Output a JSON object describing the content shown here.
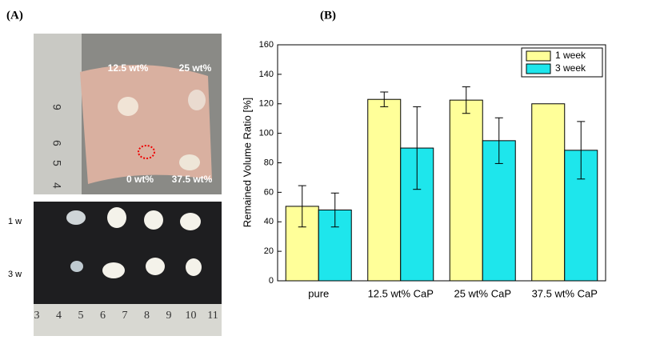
{
  "panel_a": {
    "label": "(A)",
    "top_photo_labels": [
      "12.5 wt%",
      "25 wt%",
      "0 wt%",
      "37.5 wt%"
    ],
    "row_labels": [
      "1 w",
      "3 w"
    ],
    "ruler_left": [
      "9",
      "6",
      "5",
      "4"
    ],
    "ruler_bottom": [
      "3",
      "4",
      "5",
      "6",
      "7",
      "8",
      "9",
      "10",
      "11"
    ]
  },
  "chart_data": {
    "type": "bar",
    "panel_label": "(B)",
    "y_label": "Remained Volume Ratio [%]",
    "categories": [
      "pure",
      "12.5 wt% CaP",
      "25 wt% CaP",
      "37.5 wt% CaP"
    ],
    "series": [
      {
        "name": "1 week",
        "color": "#ffff99",
        "values": [
          50.5,
          123,
          122.5,
          120
        ],
        "errors": [
          14,
          5,
          9,
          null
        ]
      },
      {
        "name": "3 week",
        "color": "#1ee6ec",
        "values": [
          48,
          90,
          95,
          88.5
        ],
        "errors": [
          11.5,
          28,
          15.5,
          19.5
        ]
      }
    ],
    "ylim": [
      0,
      160
    ],
    "yticks": [
      0,
      20,
      40,
      60,
      80,
      100,
      120,
      140,
      160
    ],
    "legend": "top-right",
    "grid": false
  }
}
